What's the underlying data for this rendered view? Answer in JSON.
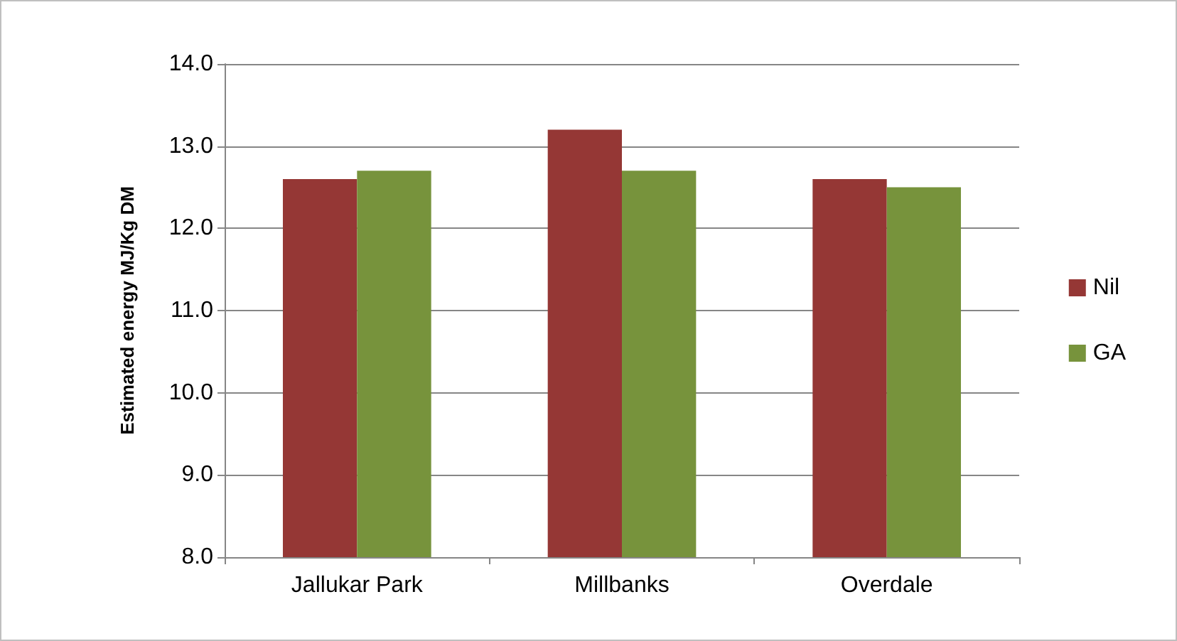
{
  "chart_data": {
    "type": "bar",
    "ylabel": "Estimated energy MJ/Kg DM",
    "categories": [
      "Jallukar Park",
      "Millbanks",
      "Overdale"
    ],
    "series": [
      {
        "name": "Nil",
        "color": "#953735",
        "values": [
          12.6,
          13.2,
          12.6
        ]
      },
      {
        "name": "GA",
        "color": "#77933c",
        "values": [
          12.7,
          12.7,
          12.5
        ]
      }
    ],
    "ylim": [
      8.0,
      14.0
    ],
    "yticks": [
      {
        "value": 8,
        "label": "8.0"
      },
      {
        "value": 9,
        "label": "9.0"
      },
      {
        "value": 10,
        "label": "10.0"
      },
      {
        "value": 11,
        "label": "11.0"
      },
      {
        "value": 12,
        "label": "12.0"
      },
      {
        "value": 13,
        "label": "13.0"
      },
      {
        "value": 14,
        "label": "14.0"
      }
    ],
    "grid": "y",
    "legend": "right"
  }
}
